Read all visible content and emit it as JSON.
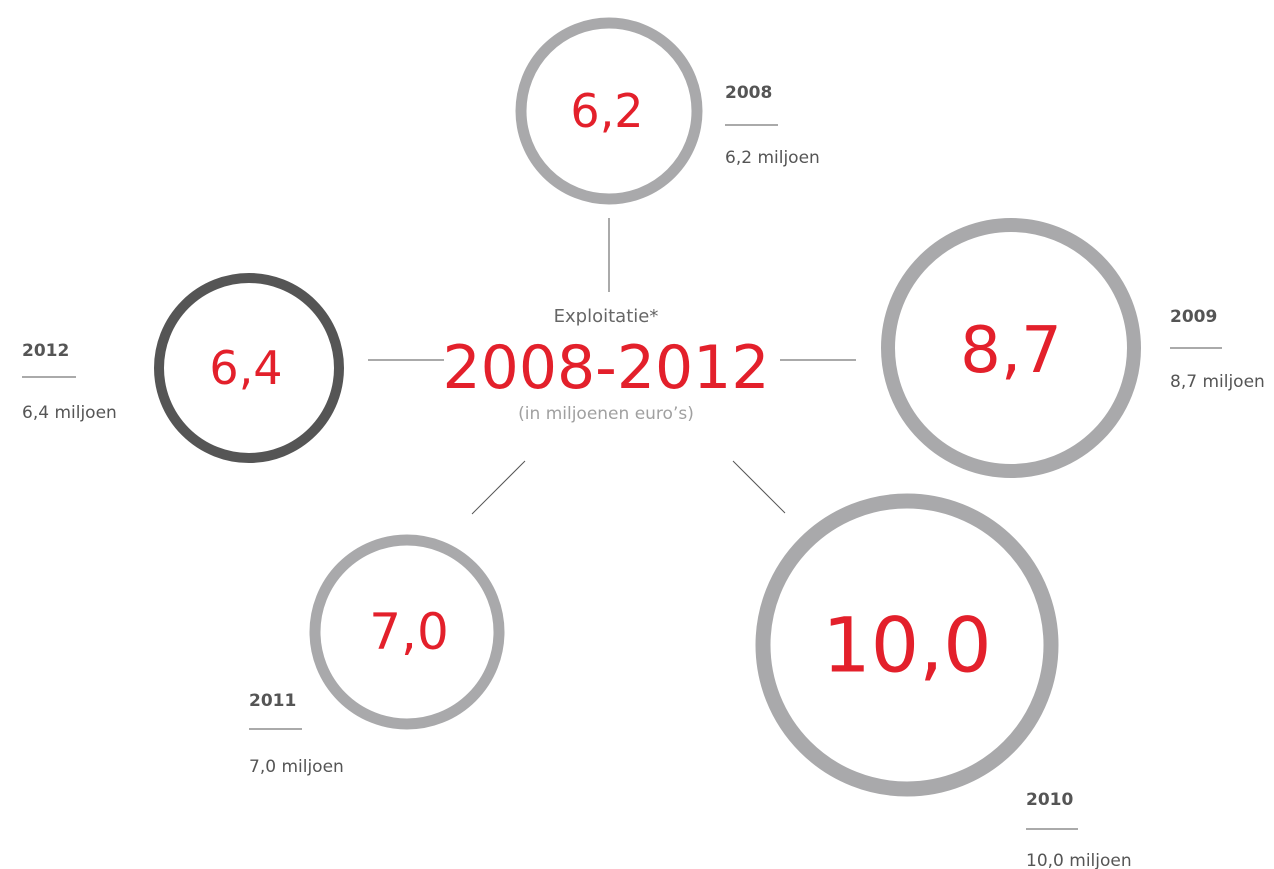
{
  "center": {
    "label": "Exploitatie*",
    "title": "2008-2012",
    "unit": "(in miljoenen euro’s)"
  },
  "colors": {
    "accent": "#e3202b",
    "ring": "#a9a9ab",
    "ring_current": "#555555",
    "text": "#555555"
  },
  "years": [
    {
      "year": "2008",
      "value": "6,2",
      "amount": "6,2 miljoen",
      "amount_num": 6.2
    },
    {
      "year": "2009",
      "value": "8,7",
      "amount": "8,7 miljoen",
      "amount_num": 8.7
    },
    {
      "year": "2010",
      "value": "10,0",
      "amount": "10,0 miljoen",
      "amount_num": 10.0
    },
    {
      "year": "2011",
      "value": "7,0",
      "amount": "7,0 miljoen",
      "amount_num": 7.0
    },
    {
      "year": "2012",
      "value": "6,4",
      "amount": "6,4 miljoen",
      "amount_num": 6.4
    }
  ]
}
